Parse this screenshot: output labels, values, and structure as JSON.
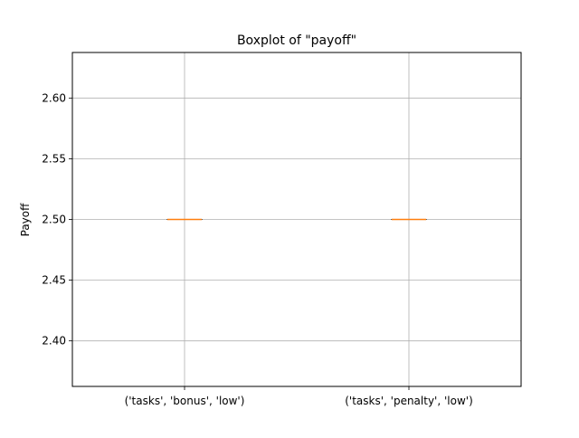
{
  "chart_data": {
    "type": "boxplot",
    "title": "Boxplot of \"payoff\"",
    "xlabel": "",
    "ylabel": "Payoff",
    "ylim": [
      2.3625,
      2.6375
    ],
    "yticks": [
      2.4,
      2.45,
      2.5,
      2.55,
      2.6
    ],
    "ytick_labels": [
      "2.40",
      "2.45",
      "2.50",
      "2.55",
      "2.60"
    ],
    "grid": true,
    "categories": [
      "('tasks', 'bonus', 'low')",
      "('tasks', 'penalty', 'low')"
    ],
    "boxes": [
      {
        "min": 2.5,
        "q1": 2.5,
        "median": 2.5,
        "q3": 2.5,
        "max": 2.5
      },
      {
        "min": 2.5,
        "q1": 2.5,
        "median": 2.5,
        "q3": 2.5,
        "max": 2.5
      }
    ],
    "colors": {
      "box": "#000000",
      "median": "#ff7f0e",
      "grid": "#b0b0b0",
      "axes": "#000000"
    }
  }
}
